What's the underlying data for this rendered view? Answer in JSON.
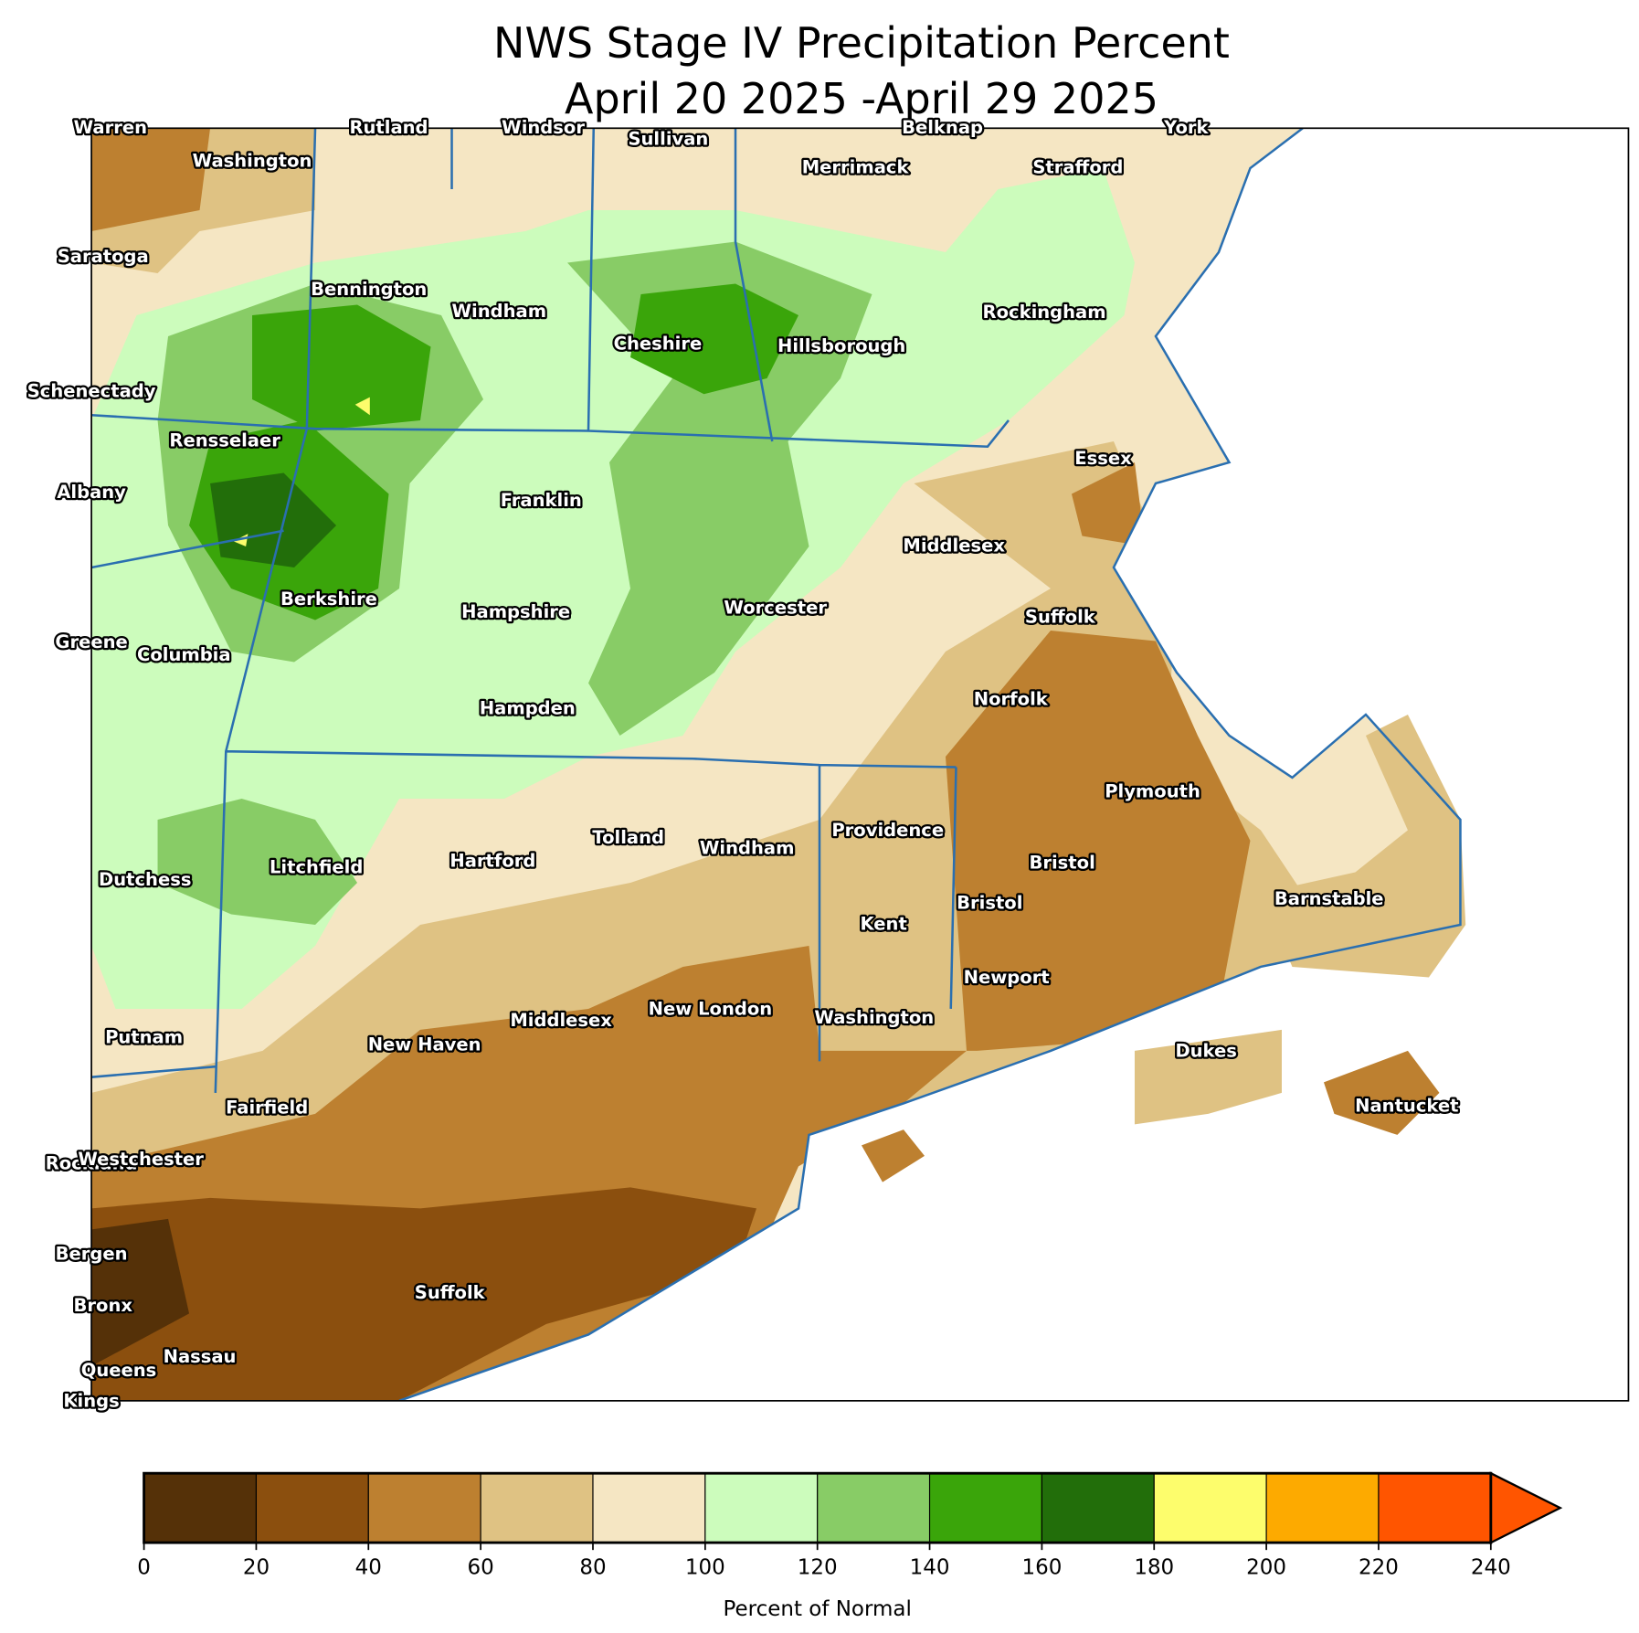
{
  "title": [
    "NWS Stage IV Precipitation Percent",
    "April 20 2025 -April 29 2025"
  ],
  "counties": [
    "Warren",
    "Rutland",
    "Windsor",
    "Sullivan",
    "Belknap",
    "York",
    "Washington",
    "Merrimack",
    "Strafford",
    "Saratoga",
    "Bennington",
    "Windham",
    "Rockingham",
    "Cheshire",
    "Hillsborough",
    "Schenectady",
    "Rensselaer",
    "Essex",
    "Albany",
    "Franklin",
    "Middlesex",
    "Berkshire",
    "Worcester",
    "Hampshire",
    "Suffolk",
    "Greene",
    "Columbia",
    "Norfolk",
    "Hampden",
    "Plymouth",
    "Providence",
    "Tolland",
    "Windham",
    "Hartford",
    "Bristol",
    "Litchfield",
    "Dutchess",
    "Barnstable",
    "Bristol",
    "Kent",
    "Newport",
    "New London",
    "Washington",
    "Middlesex",
    "New Haven",
    "Putnam",
    "Dukes",
    "Fairfield",
    "Nantucket",
    "Rockland",
    "Westchester",
    "Bergen",
    "Suffolk",
    "Bronx",
    "Nassau",
    "Queens",
    "Kings"
  ],
  "colorbar": {
    "label": "Percent of Normal",
    "ticks": [
      0,
      20,
      40,
      60,
      80,
      100,
      120,
      140,
      160,
      180,
      200,
      220,
      240
    ],
    "colors": [
      "#553108",
      "#8b4f0e",
      "#bd8030",
      "#dfc283",
      "#f5e6c3",
      "#ccfcbc",
      "#88cc66",
      "#3aa50a",
      "#226e0a",
      "#fdfd6c",
      "#fdaa00",
      "#ff5500"
    ],
    "extend": "max"
  }
}
